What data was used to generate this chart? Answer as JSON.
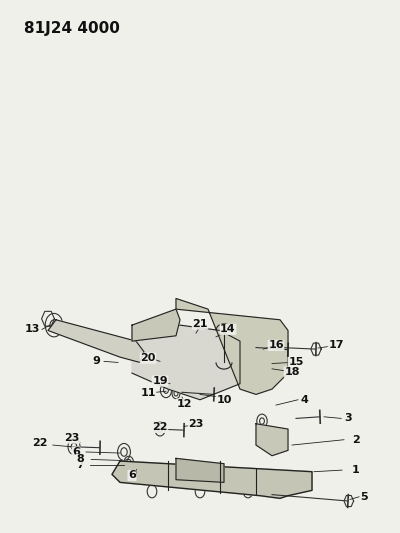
{
  "title": "81J24 4000",
  "bg_color": "#f0f0eb",
  "line_color": "#222222",
  "label_color": "#111111",
  "title_fontsize": 11,
  "label_fontsize": 8.0
}
